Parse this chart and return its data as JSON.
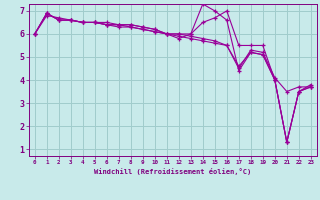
{
  "xlabel": "Windchill (Refroidissement éolien,°C)",
  "bg_color": "#c8eaea",
  "grid_color": "#a0cccc",
  "line_color": "#990099",
  "xlim": [
    -0.5,
    23.5
  ],
  "ylim": [
    0.7,
    7.3
  ],
  "yticks": [
    1,
    2,
    3,
    4,
    5,
    6,
    7
  ],
  "xticks": [
    0,
    1,
    2,
    3,
    4,
    5,
    6,
    7,
    8,
    9,
    10,
    11,
    12,
    13,
    14,
    15,
    16,
    17,
    18,
    19,
    20,
    21,
    22,
    23
  ],
  "xtick_labels": [
    "0",
    "1",
    "2",
    "3",
    "4",
    "5",
    "6",
    "7",
    "8",
    "9",
    "10",
    "11",
    "12",
    "13",
    "14",
    "15",
    "16",
    "17",
    "18",
    "19",
    "20",
    "21",
    "22",
    "23"
  ],
  "series": [
    [
      6.0,
      6.9,
      6.6,
      6.6,
      6.5,
      6.5,
      6.5,
      6.4,
      6.4,
      6.3,
      6.2,
      6.0,
      6.0,
      6.0,
      7.3,
      7.0,
      6.6,
      4.4,
      5.2,
      5.1,
      4.0,
      1.3,
      3.5,
      3.7
    ],
    [
      6.0,
      6.9,
      6.6,
      6.6,
      6.5,
      6.5,
      6.4,
      6.4,
      6.3,
      6.2,
      6.1,
      6.0,
      5.9,
      5.8,
      5.7,
      5.6,
      5.5,
      4.5,
      5.3,
      5.2,
      4.1,
      3.5,
      3.7,
      3.7
    ],
    [
      6.0,
      6.8,
      6.7,
      6.6,
      6.5,
      6.5,
      6.4,
      6.3,
      6.3,
      6.2,
      6.1,
      6.0,
      5.8,
      6.0,
      6.5,
      6.7,
      7.0,
      5.5,
      5.5,
      5.5,
      4.0,
      1.3,
      3.5,
      3.8
    ],
    [
      6.0,
      6.9,
      6.6,
      6.6,
      6.5,
      6.5,
      6.4,
      6.4,
      6.4,
      6.3,
      6.2,
      6.0,
      6.0,
      5.9,
      5.8,
      5.7,
      5.5,
      4.6,
      5.2,
      5.1,
      4.0,
      1.3,
      3.5,
      3.7
    ]
  ]
}
